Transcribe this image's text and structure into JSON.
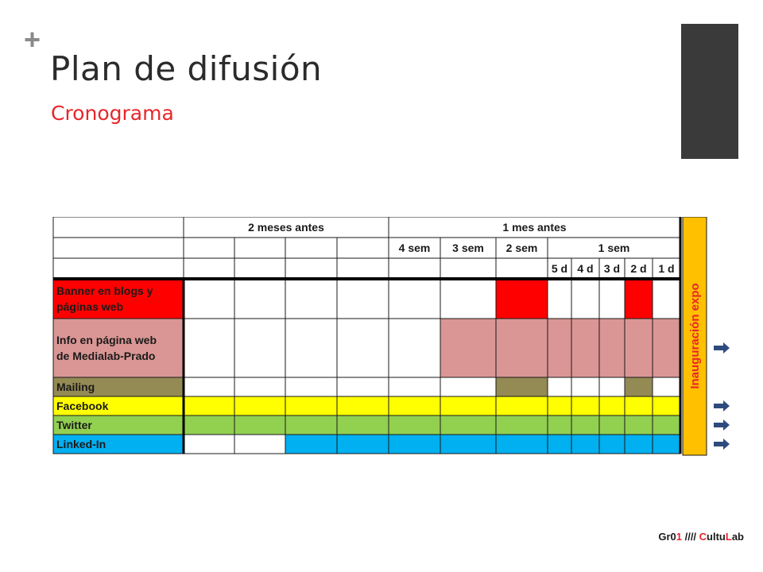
{
  "slide": {
    "plus_mark": "+",
    "title": "Plan de difusión",
    "subtitle": "Cronograma"
  },
  "schedule": {
    "header_groups": [
      {
        "label": "2 meses antes",
        "span": [
          1,
          4
        ]
      },
      {
        "label": "1 mes antes",
        "span": [
          5,
          12
        ]
      }
    ],
    "week_headers": [
      {
        "label": "4 sem",
        "span": [
          5,
          5
        ]
      },
      {
        "label": "3 sem",
        "span": [
          6,
          6
        ]
      },
      {
        "label": "2 sem",
        "span": [
          7,
          7
        ]
      },
      {
        "label": "1 sem",
        "span": [
          8,
          12
        ]
      }
    ],
    "day_headers": [
      {
        "label": "5 d",
        "col": 8
      },
      {
        "label": "4 d",
        "col": 9
      },
      {
        "label": "3 d",
        "col": 10
      },
      {
        "label": "2 d",
        "col": 11
      },
      {
        "label": "1 d",
        "col": 12
      }
    ],
    "end_label": "Inauguración expo",
    "end_color": "#ffc000",
    "rows": [
      {
        "label_lines": [
          "Banner en blogs y",
          "páginas web"
        ],
        "color": "#ff0000",
        "active": [
          0,
          0,
          0,
          0,
          0,
          0,
          1,
          0,
          0,
          0,
          1,
          0
        ]
      },
      {
        "label_lines": [
          "Info en página web",
          "de Medialab-Prado"
        ],
        "color": "#da9694",
        "active": [
          0,
          0,
          0,
          0,
          0,
          1,
          1,
          1,
          1,
          1,
          1,
          1
        ]
      },
      {
        "label_lines": [
          "Mailing"
        ],
        "color": "#948a54",
        "active": [
          0,
          0,
          0,
          0,
          0,
          0,
          1,
          0,
          0,
          0,
          1,
          0
        ]
      },
      {
        "label_lines": [
          "Facebook"
        ],
        "color": "#ffff00",
        "active": [
          1,
          1,
          1,
          1,
          1,
          1,
          1,
          1,
          1,
          1,
          1,
          1
        ]
      },
      {
        "label_lines": [
          "Twitter"
        ],
        "color": "#92d050",
        "active": [
          1,
          1,
          1,
          1,
          1,
          1,
          1,
          1,
          1,
          1,
          1,
          1
        ]
      },
      {
        "label_lines": [
          "Linked-In"
        ],
        "color": "#00b0f0",
        "active": [
          0,
          0,
          1,
          1,
          1,
          1,
          1,
          1,
          1,
          1,
          1,
          1
        ]
      }
    ],
    "arrow_rows": [
      1,
      3,
      4,
      5
    ],
    "arrow_color": "#2e4b7e"
  },
  "footer": {
    "prefix": "Gr0",
    "digit": "1",
    "sep": " //// ",
    "c": "C",
    "mid": "ultu",
    "l": "L",
    "end": "ab"
  }
}
